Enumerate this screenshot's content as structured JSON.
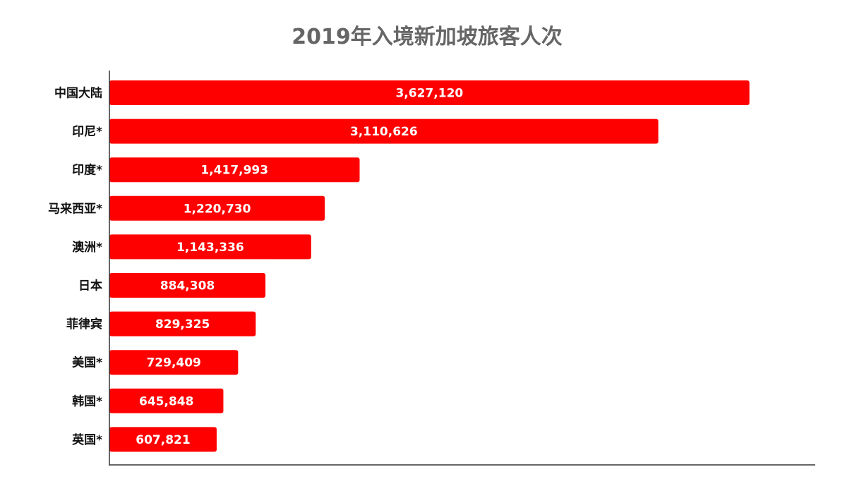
{
  "chart_data": {
    "type": "bar",
    "orientation": "horizontal",
    "title": "2019年入境新加坡旅客人次",
    "xlabel": "",
    "ylabel": "",
    "categories": [
      "中国大陆",
      "印尼*",
      "印度*",
      "马来西亚*",
      "澳洲*",
      "日本",
      "菲律宾",
      "美国*",
      "韩国*",
      "英国*"
    ],
    "values": [
      3627120,
      3110626,
      1417993,
      1220730,
      1143336,
      884308,
      829325,
      729409,
      645848,
      607821
    ],
    "value_labels": [
      "3,627,120",
      "3,110,626",
      "1,417,993",
      "1,220,730",
      "1,143,336",
      "884,308",
      "829,325",
      "729,409",
      "645,848",
      "607,821"
    ],
    "xlim": [
      0,
      4000000
    ],
    "grid": false,
    "legend": "none",
    "colors": {
      "bar": "#ff0000",
      "title": "#666666",
      "axis": "#333333",
      "category_text": "#111111",
      "value_text": "#ffffff"
    }
  }
}
